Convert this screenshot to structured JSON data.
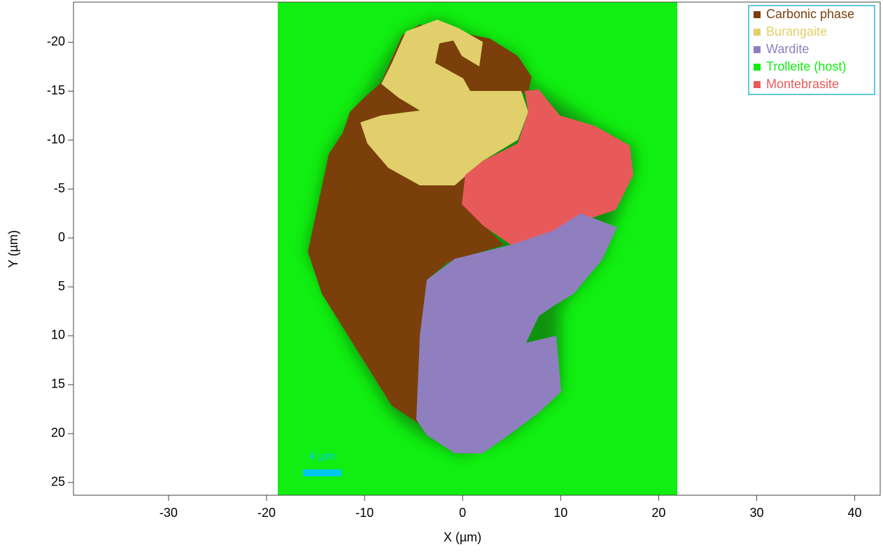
{
  "chart_data": {
    "type": "image_map",
    "xlabel": "X (µm)",
    "ylabel": "Y (µm)",
    "xlim": [
      -39.7,
      42.6
    ],
    "ylim": [
      26.3,
      -24.1
    ],
    "xticks": [
      -30,
      -20,
      -10,
      0,
      10,
      20,
      30,
      40
    ],
    "yticks": [
      -20,
      -15,
      -10,
      -5,
      0,
      5,
      10,
      15,
      20,
      25
    ],
    "legend": "upper right",
    "scale_bar": {
      "label": "4 µm",
      "color": "#00c8f0"
    },
    "series": [
      {
        "name": "Carbonic phase",
        "color": "#7a3f0a"
      },
      {
        "name": "Burangaite",
        "color": "#e0cf6a"
      },
      {
        "name": "Wardite",
        "color": "#8f7fbf"
      },
      {
        "name": "Trolleite (host)",
        "color": "#11ee11"
      },
      {
        "name": "Montebrasite",
        "color": "#e85a5a"
      }
    ]
  }
}
